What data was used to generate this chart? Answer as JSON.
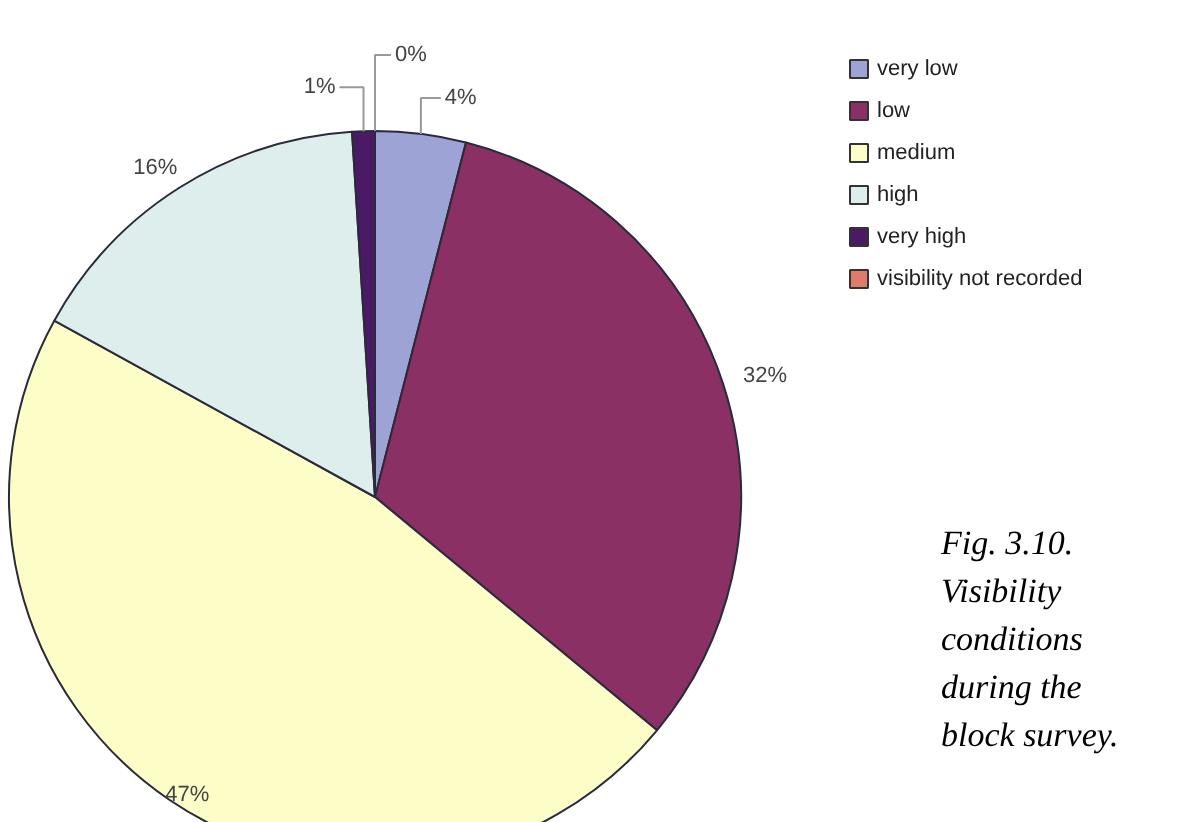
{
  "chart_data": {
    "type": "pie",
    "categories": [
      "very low",
      "low",
      "medium",
      "high",
      "very high",
      "visibility not recorded"
    ],
    "values": [
      4,
      32,
      47,
      16,
      1,
      0
    ],
    "colors": [
      "#9ea3d6",
      "#8b3065",
      "#fdfdc8",
      "#ddeeed",
      "#4b1a64",
      "#e07b6a"
    ],
    "value_labels": [
      "4%",
      "32%",
      "47%",
      "16%",
      "1%",
      "0%"
    ],
    "legend": "right",
    "annotations": [
      "Fig. 3.10. Visibility conditions during the block survey."
    ]
  }
}
